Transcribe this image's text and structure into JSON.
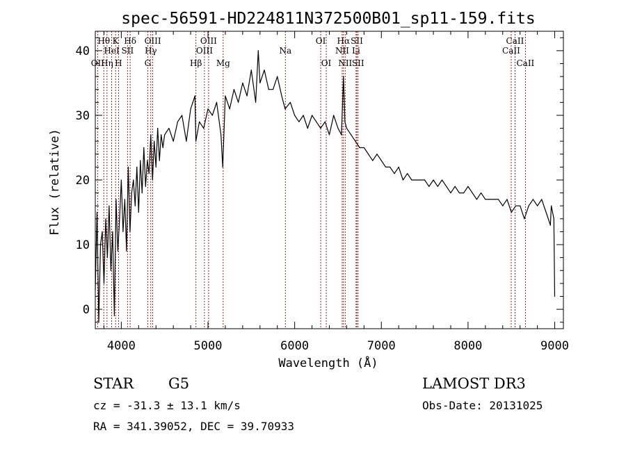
{
  "chart_data": {
    "type": "line",
    "title": "spec-56591-HD224811N372500B01_sp11-159.fits",
    "xlabel": "Wavelength (Å)",
    "ylabel": "Flux (relative)",
    "xlim": [
      3700,
      9100
    ],
    "ylim": [
      -3,
      43
    ],
    "xticks": [
      4000,
      5000,
      6000,
      7000,
      8000,
      9000
    ],
    "yticks": [
      0,
      10,
      20,
      30,
      40
    ],
    "line_color": "#000000",
    "marker_color": "#aa0000",
    "series": [
      {
        "x": [
          3700,
          3720,
          3740,
          3760,
          3780,
          3800,
          3820,
          3840,
          3860,
          3880,
          3900,
          3920,
          3940,
          3960,
          3980,
          4000,
          4020,
          4040,
          4060,
          4080,
          4100,
          4120,
          4140,
          4160,
          4180,
          4200,
          4220,
          4240,
          4260,
          4280,
          4300,
          4320,
          4340,
          4360,
          4380,
          4400,
          4420,
          4440,
          4460,
          4480,
          4500,
          4550,
          4600,
          4650,
          4700,
          4750,
          4800,
          4850,
          4860,
          4900,
          4950,
          5000,
          5050,
          5100,
          5150,
          5170,
          5200,
          5250,
          5300,
          5350,
          5400,
          5450,
          5500,
          5550,
          5580,
          5600,
          5650,
          5700,
          5750,
          5800,
          5850,
          5890,
          5950,
          6000,
          6050,
          6100,
          6150,
          6200,
          6250,
          6300,
          6350,
          6400,
          6450,
          6500,
          6540,
          6563,
          6580,
          6600,
          6650,
          6700,
          6750,
          6800,
          6850,
          6900,
          6950,
          7000,
          7050,
          7100,
          7150,
          7200,
          7250,
          7300,
          7350,
          7400,
          7450,
          7500,
          7550,
          7600,
          7650,
          7700,
          7750,
          7800,
          7850,
          7900,
          7950,
          8000,
          8050,
          8100,
          8150,
          8200,
          8250,
          8300,
          8350,
          8400,
          8450,
          8500,
          8550,
          8600,
          8650,
          8700,
          8750,
          8800,
          8850,
          8900,
          8950,
          8960,
          8990,
          9000
        ],
        "y": [
          3,
          15,
          -2,
          10,
          12,
          4,
          14,
          8,
          16,
          6,
          12,
          -1,
          17,
          9,
          14,
          20,
          12,
          17,
          9,
          22,
          12,
          18,
          20,
          16,
          22,
          15,
          23,
          18,
          25,
          19,
          23,
          21,
          27,
          20,
          26,
          22,
          28,
          23,
          27,
          25,
          27,
          28,
          26,
          29,
          30,
          26,
          31,
          33,
          26,
          29,
          28,
          31,
          30,
          32,
          27,
          22,
          33,
          31,
          34,
          32,
          35,
          33,
          37,
          32,
          40,
          35,
          37,
          34,
          34,
          36,
          33,
          31,
          32,
          30,
          29,
          30,
          28,
          30,
          29,
          28,
          29,
          27,
          30,
          28,
          27,
          36,
          29,
          28,
          27,
          26,
          25,
          25,
          24,
          23,
          24,
          23,
          22,
          22,
          21,
          22,
          20,
          21,
          20,
          20,
          20,
          20,
          19,
          20,
          19,
          20,
          19,
          18,
          19,
          18,
          18,
          19,
          18,
          17,
          18,
          17,
          17,
          17,
          17,
          16,
          17,
          15,
          16,
          16,
          14,
          16,
          17,
          16,
          17,
          15,
          13,
          16,
          14,
          2
        ]
      }
    ],
    "line_labels": [
      {
        "label": "Hθ",
        "x": 3798,
        "row": 1
      },
      {
        "label": "OII",
        "x": 3727,
        "row": 3
      },
      {
        "label": "Hη",
        "x": 3835,
        "row": 3
      },
      {
        "label": "HeI",
        "x": 3889,
        "row": 2
      },
      {
        "label": "K",
        "x": 3934,
        "row": 1
      },
      {
        "label": "H",
        "x": 3968,
        "row": 3
      },
      {
        "label": "SII",
        "x": 4072,
        "row": 2
      },
      {
        "label": "Hδ",
        "x": 4102,
        "row": 1
      },
      {
        "label": "OIII",
        "x": 4363,
        "row": 1
      },
      {
        "label": "Hγ",
        "x": 4340,
        "row": 2
      },
      {
        "label": "G",
        "x": 4305,
        "row": 3
      },
      {
        "label": "Hβ",
        "x": 4861,
        "row": 3
      },
      {
        "label": "OIII",
        "x": 5007,
        "row": 1
      },
      {
        "label": "OIII",
        "x": 4959,
        "row": 2
      },
      {
        "label": "Mg",
        "x": 5175,
        "row": 3
      },
      {
        "label": "Na",
        "x": 5893,
        "row": 2
      },
      {
        "label": "OI",
        "x": 6300,
        "row": 1
      },
      {
        "label": "OI",
        "x": 6364,
        "row": 3
      },
      {
        "label": "Hα",
        "x": 6563,
        "row": 1
      },
      {
        "label": "NII",
        "x": 6548,
        "row": 2
      },
      {
        "label": "NII",
        "x": 6583,
        "row": 3
      },
      {
        "label": "SII",
        "x": 6717,
        "row": 1
      },
      {
        "label": "Li",
        "x": 6708,
        "row": 2
      },
      {
        "label": "SII",
        "x": 6731,
        "row": 3
      },
      {
        "label": "CaII",
        "x": 8542,
        "row": 1
      },
      {
        "label": "CaII",
        "x": 8498,
        "row": 2
      },
      {
        "label": "CaII",
        "x": 8662,
        "row": 3
      }
    ]
  },
  "info": {
    "object_class": "STAR",
    "subclass": "G5",
    "survey": "LAMOST DR3",
    "redshift": "cz = -31.3 ± 13.1 km/s",
    "obs_date": "Obs-Date: 20131025",
    "coords": "RA = 341.39052, DEC =  39.70933"
  }
}
